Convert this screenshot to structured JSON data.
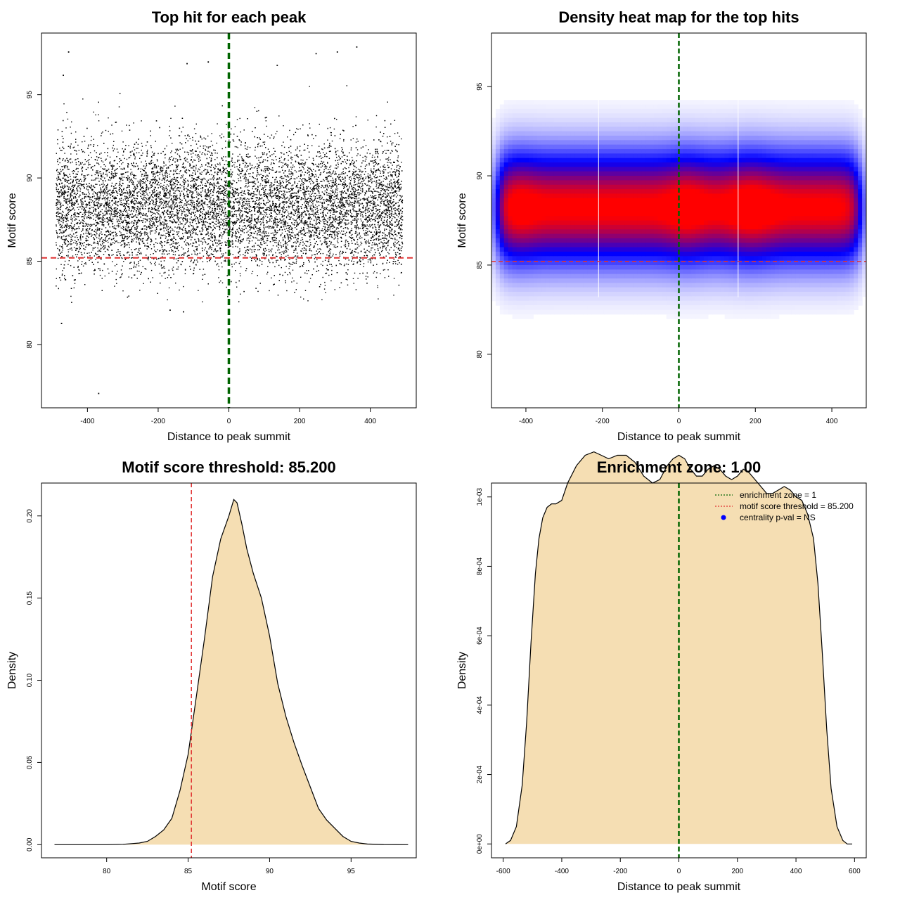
{
  "chart_data": [
    {
      "id": "scatter",
      "type": "scatter",
      "title": "Top hit for each peak",
      "xlabel": "Distance to peak summit",
      "ylabel": "Motif score",
      "xlim": [
        -530,
        530
      ],
      "ylim": [
        76.2,
        98.7
      ],
      "xticks": [
        -400,
        -200,
        0,
        200,
        400
      ],
      "yticks": [
        80,
        85,
        90,
        95
      ],
      "vline": {
        "value": 0,
        "color": "#006400"
      },
      "hline": {
        "value": 85.2,
        "color": "#e03030"
      },
      "point_cloud": {
        "n_points": 12000,
        "x_range": [
          -490,
          490
        ],
        "score_mean": 88.3,
        "score_sd": 1.9
      },
      "outliers": [
        {
          "x": -475,
          "y": 81.3
        },
        {
          "x": -370,
          "y": 77.1
        },
        {
          "x": -455,
          "y": 97.6
        },
        {
          "x": -120,
          "y": 96.9
        },
        {
          "x": -60,
          "y": 97.0
        },
        {
          "x": 245,
          "y": 97.5
        },
        {
          "x": 305,
          "y": 97.6
        },
        {
          "x": 360,
          "y": 97.9
        },
        {
          "x": -168,
          "y": 82.1
        },
        {
          "x": -130,
          "y": 82.0
        },
        {
          "x": 135,
          "y": 96.8
        },
        {
          "x": -470,
          "y": 96.2
        }
      ]
    },
    {
      "id": "heatmap",
      "type": "heatmap",
      "title": "Density heat map for the top hits",
      "xlabel": "Distance to peak summit",
      "ylabel": "Motif score",
      "xlim": [
        -490,
        490
      ],
      "ylim": [
        77.0,
        98.0
      ],
      "xticks": [
        -400,
        -200,
        0,
        200,
        400
      ],
      "yticks": [
        80,
        85,
        90,
        95
      ],
      "vline": {
        "value": 0,
        "color": "#006400"
      },
      "hline": {
        "value": 85.2,
        "color": "#e03030"
      },
      "white_lines_x": [
        -210,
        155
      ],
      "density": {
        "x_range": [
          -475,
          475
        ],
        "score_mean": 88.2,
        "score_sd": 1.6
      },
      "colors": [
        "#ffffff",
        "#0000ff",
        "#ff0000"
      ]
    },
    {
      "id": "score_density",
      "type": "area",
      "title": "Motif score threshold: 85.200",
      "xlabel": "Motif score",
      "ylabel": "Density",
      "xlim": [
        76.0,
        99.0
      ],
      "ylim": [
        -0.008,
        0.22
      ],
      "xticks": [
        80,
        85,
        90,
        95
      ],
      "yticks": [
        0.0,
        0.05,
        0.1,
        0.15,
        0.2
      ],
      "ytick_labels": [
        "0.00",
        "0.05",
        "0.10",
        "0.15",
        "0.20"
      ],
      "vline": {
        "value": 85.2,
        "color": "#e03030"
      },
      "fill": "#f5deb3",
      "x": [
        76.8,
        80,
        81,
        82,
        82.5,
        83,
        83.5,
        84,
        84.5,
        85,
        85.5,
        86,
        86.5,
        87,
        87.5,
        87.8,
        88,
        88.3,
        88.6,
        89,
        89.5,
        90,
        90.5,
        91,
        91.5,
        92,
        92.5,
        93,
        93.5,
        94,
        94.5,
        95,
        95.5,
        96,
        97,
        98.5
      ],
      "y": [
        0,
        0,
        0.0002,
        0.001,
        0.002,
        0.005,
        0.009,
        0.016,
        0.033,
        0.055,
        0.09,
        0.125,
        0.163,
        0.186,
        0.2,
        0.21,
        0.208,
        0.195,
        0.18,
        0.165,
        0.15,
        0.127,
        0.098,
        0.078,
        0.062,
        0.048,
        0.035,
        0.022,
        0.015,
        0.01,
        0.005,
        0.002,
        0.001,
        0.0004,
        0.0001,
        0
      ]
    },
    {
      "id": "position_density",
      "type": "area",
      "title": "Enrichment zone: 1.00",
      "xlabel": "Distance to peak summit",
      "ylabel": "Density",
      "xlim": [
        -640,
        640
      ],
      "ylim": [
        -4e-05,
        0.00104
      ],
      "xticks": [
        -600,
        -400,
        -200,
        0,
        200,
        400,
        600
      ],
      "yticks": [
        0,
        0.0002,
        0.0004,
        0.0006,
        0.0008,
        0.001
      ],
      "ytick_labels": [
        "0e+00",
        "2e-04",
        "4e-04",
        "6e-04",
        "8e-04",
        "1e-03"
      ],
      "vline": {
        "value": 0,
        "color": "#006400"
      },
      "fill": "#f5deb3",
      "x": [
        -592,
        -575,
        -555,
        -535,
        -520,
        -505,
        -490,
        -478,
        -465,
        -450,
        -435,
        -420,
        -400,
        -380,
        -350,
        -320,
        -290,
        -265,
        -240,
        -210,
        -180,
        -150,
        -120,
        -90,
        -65,
        -40,
        -20,
        0,
        20,
        40,
        60,
        80,
        100,
        120,
        140,
        160,
        180,
        200,
        220,
        240,
        260,
        280,
        300,
        320,
        340,
        360,
        380,
        400,
        420,
        440,
        460,
        475,
        490,
        505,
        520,
        540,
        560,
        575,
        592
      ],
      "y": [
        0,
        1e-05,
        5e-05,
        0.00017,
        0.00035,
        0.00058,
        0.00078,
        0.00088,
        0.00094,
        0.00097,
        0.00098,
        0.00098,
        0.00099,
        0.00104,
        0.00109,
        0.00112,
        0.00113,
        0.00112,
        0.00111,
        0.00112,
        0.00112,
        0.0011,
        0.00106,
        0.00104,
        0.00105,
        0.00109,
        0.00111,
        0.00112,
        0.00111,
        0.00108,
        0.00106,
        0.00106,
        0.00108,
        0.00109,
        0.00108,
        0.00106,
        0.00105,
        0.00106,
        0.00108,
        0.00107,
        0.00105,
        0.00103,
        0.00101,
        0.00101,
        0.00102,
        0.00103,
        0.00102,
        0.001,
        0.00099,
        0.00095,
        0.00088,
        0.00075,
        0.00055,
        0.00033,
        0.00016,
        5e-05,
        1e-05,
        0,
        0
      ],
      "legend": {
        "position": "top-right",
        "entries": [
          {
            "label": "enrichment zone = 1",
            "color": "#006400",
            "style": "dotted-line"
          },
          {
            "label": "motif score threshold = 85.200",
            "color": "#e03030",
            "style": "dotted-line"
          },
          {
            "label": "centrality p-val = NS",
            "color": "#0000ff",
            "style": "point"
          }
        ]
      }
    }
  ]
}
